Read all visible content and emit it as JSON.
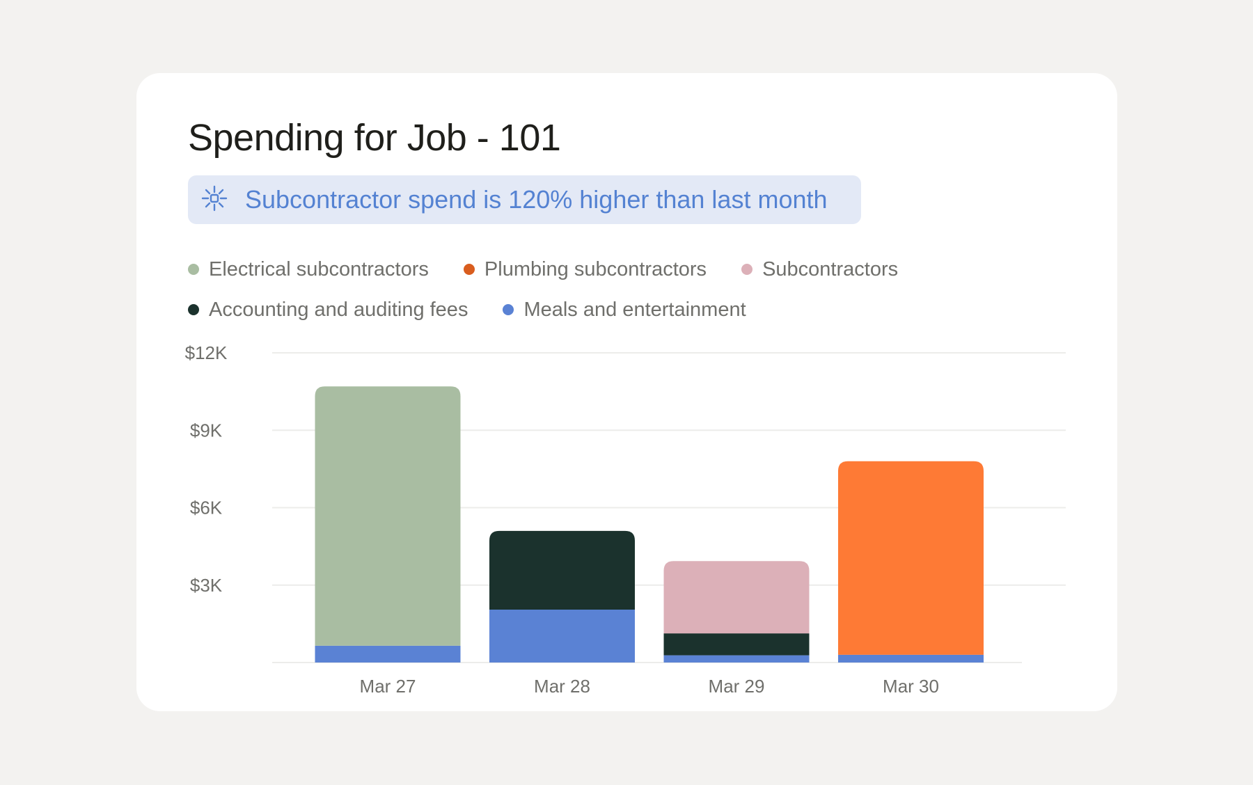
{
  "title": "Spending for Job - 101",
  "insight": {
    "icon": "sparkle-icon",
    "text": "Subcontractor spend is 120% higher than last month"
  },
  "chart_data": {
    "type": "bar",
    "stacked": true,
    "categories": [
      "Mar 27",
      "Mar 28",
      "Mar 29",
      "Mar 30"
    ],
    "series": [
      {
        "name": "Meals and entertainment",
        "color": "#5a82d4",
        "values": [
          650,
          2050,
          280,
          300
        ]
      },
      {
        "name": "Electrical subcontractors",
        "color": "#a9bda2",
        "values": [
          10050,
          0,
          0,
          0
        ]
      },
      {
        "name": "Accounting and auditing fees",
        "color": "#1b322d",
        "values": [
          0,
          3050,
          850,
          0
        ]
      },
      {
        "name": "Subcontractors",
        "color": "#dcb0b8",
        "values": [
          0,
          0,
          2800,
          0
        ]
      },
      {
        "name": "Plumbing subcontractors",
        "color": "#fe7a35",
        "values": [
          0,
          0,
          0,
          7500
        ]
      }
    ],
    "ylim": [
      0,
      12000
    ],
    "yticks": [
      {
        "value": 3000,
        "label": "$3K"
      },
      {
        "value": 6000,
        "label": "$6K"
      },
      {
        "value": 9000,
        "label": "$9K"
      },
      {
        "value": 12000,
        "label": "$12K"
      }
    ],
    "grid": true,
    "legend_position": "top"
  },
  "legend": {
    "rows": [
      [
        {
          "label": "Electrical subcontractors",
          "color": "#a9bda2"
        },
        {
          "label": "Plumbing subcontractors",
          "color": "#d95d1e"
        },
        {
          "label": "Subcontractors",
          "color": "#dcb0b8"
        }
      ],
      [
        {
          "label": "Accounting and auditing fees",
          "color": "#1b322d"
        },
        {
          "label": "Meals and entertainment",
          "color": "#5a82d4"
        }
      ]
    ]
  }
}
